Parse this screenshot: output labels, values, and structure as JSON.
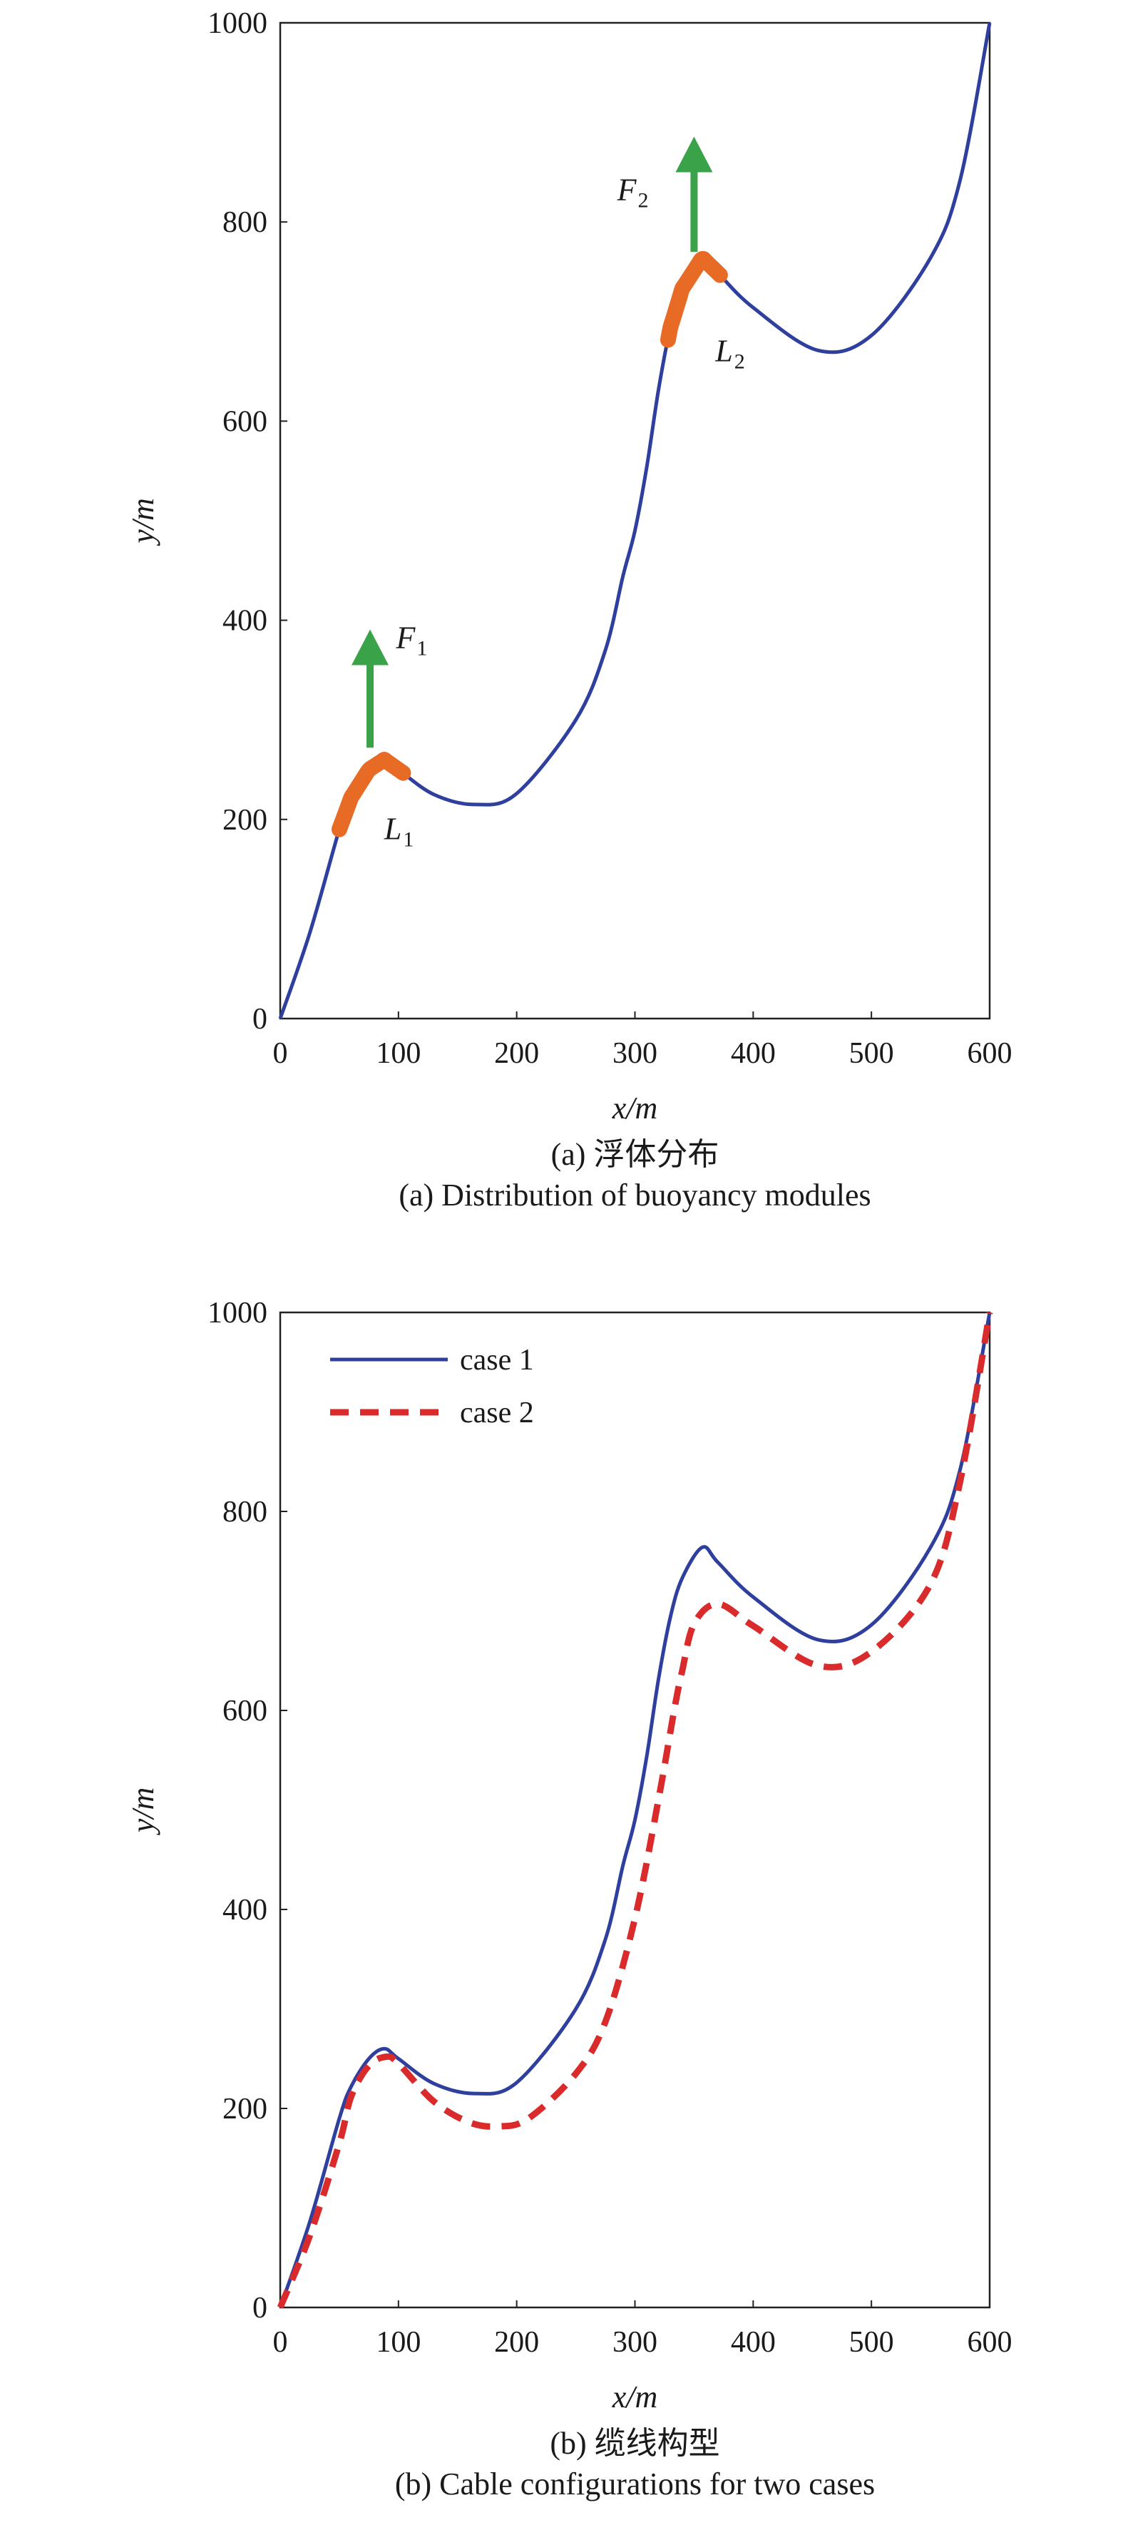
{
  "chart_data": [
    {
      "type": "line",
      "caption_cn": "(a) 浮体分布",
      "caption_en": "(a) Distribution of buoyancy modules",
      "xlabel": "x/m",
      "ylabel": "y/m",
      "xlim": [
        0,
        600
      ],
      "ylim": [
        0,
        1000
      ],
      "xticks": [
        0,
        100,
        200,
        300,
        400,
        500,
        600
      ],
      "yticks": [
        0,
        200,
        400,
        600,
        800,
        1000
      ],
      "grid": false,
      "series": [
        {
          "color": "#2e3f9e",
          "style": "solid",
          "x": [
            0,
            25,
            50,
            60,
            75,
            88,
            100,
            130,
            165,
            200,
            250,
            275,
            290,
            300,
            310,
            320,
            330,
            340,
            357,
            370,
            400,
            455,
            500,
            550,
            575,
            600
          ],
          "y": [
            0,
            86,
            190,
            222,
            250,
            260,
            250,
            225,
            215,
            226,
            300,
            370,
            445,
            490,
            554,
            632,
            694,
            733,
            764,
            749,
            714,
            671,
            686,
            764,
            842,
            1000
          ]
        }
      ],
      "buoyancy_segments": [
        {
          "label": "L",
          "sub": "1",
          "x_range": [
            50,
            105
          ],
          "color": "#e86b25"
        },
        {
          "label": "L",
          "sub": "2",
          "x_range": [
            328,
            372
          ],
          "color": "#e86b25"
        }
      ],
      "forces": [
        {
          "label": "F",
          "sub": "1",
          "x": 76,
          "y_from": 272,
          "y_to": 385,
          "color": "#3aa34a"
        },
        {
          "label": "F",
          "sub": "2",
          "x": 350,
          "y_from": 770,
          "y_to": 880,
          "color": "#3aa34a"
        }
      ]
    },
    {
      "type": "line",
      "caption_cn": "(b) 缆线构型",
      "caption_en": "(b) Cable configurations for two cases",
      "xlabel": "x/m",
      "ylabel": "y/m",
      "xlim": [
        0,
        600
      ],
      "ylim": [
        0,
        1000
      ],
      "xticks": [
        0,
        100,
        200,
        300,
        400,
        500,
        600
      ],
      "yticks": [
        0,
        200,
        400,
        600,
        800,
        1000
      ],
      "grid": false,
      "legend": "top-left",
      "series": [
        {
          "name": "case 1",
          "color": "#2e3f9e",
          "style": "solid",
          "x": [
            0,
            25,
            50,
            60,
            75,
            88,
            100,
            130,
            165,
            200,
            250,
            275,
            290,
            300,
            310,
            320,
            330,
            340,
            357,
            370,
            400,
            455,
            500,
            550,
            575,
            600
          ],
          "y": [
            0,
            86,
            190,
            222,
            250,
            260,
            250,
            225,
            215,
            226,
            300,
            370,
            445,
            490,
            554,
            632,
            694,
            733,
            764,
            749,
            714,
            671,
            686,
            764,
            842,
            1000
          ]
        },
        {
          "name": "case 2",
          "color": "#d92b2b",
          "style": "dashed",
          "x": [
            0,
            25,
            50,
            60,
            75,
            90,
            100,
            130,
            160,
            185,
            210,
            250,
            275,
            300,
            320,
            333,
            340,
            350,
            370,
            400,
            455,
            500,
            550,
            575,
            600
          ],
          "y": [
            0,
            72,
            165,
            212,
            243,
            252,
            245,
            207,
            186,
            182,
            190,
            235,
            287,
            391,
            511,
            599,
            640,
            687,
            707,
            685,
            645,
            659,
            727,
            830,
            1000
          ]
        }
      ]
    }
  ]
}
